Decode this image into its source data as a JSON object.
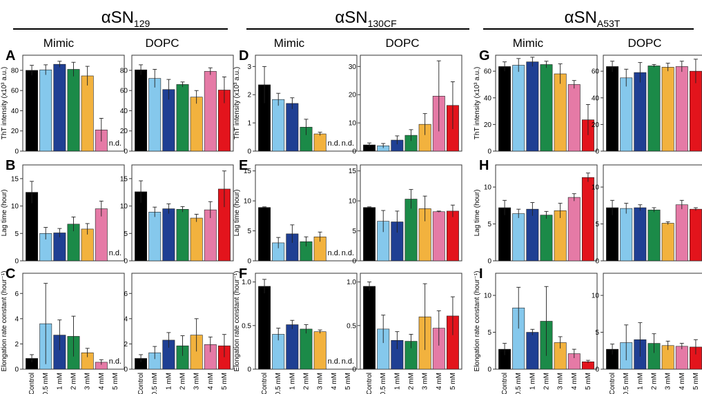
{
  "figure": {
    "groups": [
      {
        "id": "g1",
        "name": "αSN",
        "sub": "129"
      },
      {
        "id": "g2",
        "name": "αSN",
        "sub": "130CF"
      },
      {
        "id": "g3",
        "name": "αSN",
        "sub": "A53T"
      }
    ],
    "conditions": [
      "Mimic",
      "DOPC"
    ],
    "categories": [
      "Control",
      "0.5 mM",
      "1 mM",
      "2 mM",
      "3 mM",
      "4 mM",
      "5 mM"
    ],
    "bar_colors": [
      "#000000",
      "#85c8ec",
      "#1f3f93",
      "#1b8a48",
      "#f2b23e",
      "#e57aa6",
      "#e3141c"
    ],
    "nd_label": "n.d.",
    "row_labels": [
      "ThT intensity (x10³ a.u.)",
      "Lag time (hour)",
      "Elongation rate constant (hour⁻¹)"
    ]
  },
  "chart_data": [
    {
      "type": "bar",
      "panel": "A",
      "group": "αSN129",
      "condition": "Mimic",
      "ylabel": "ThT intensity (x10³ a.u.)",
      "ylim": [
        0,
        95
      ],
      "yticks": [
        0,
        20,
        40,
        60,
        80
      ],
      "values": [
        80,
        80.5,
        86,
        81,
        74.5,
        21,
        null
      ],
      "errors": [
        5,
        5,
        3,
        7,
        9.5,
        11.5,
        null
      ],
      "nd": [
        false,
        false,
        false,
        false,
        false,
        false,
        true
      ]
    },
    {
      "type": "bar",
      "panel": "",
      "group": "αSN129",
      "condition": "DOPC",
      "ylabel": "",
      "ylim": [
        0,
        95
      ],
      "yticks": [
        0,
        20,
        40,
        60,
        80
      ],
      "values": [
        80.5,
        72,
        61,
        66,
        53.5,
        79,
        60.5
      ],
      "errors": [
        5,
        9,
        10,
        2.5,
        6.5,
        3.5,
        13
      ],
      "nd": [
        false,
        false,
        false,
        false,
        false,
        false,
        false
      ]
    },
    {
      "type": "bar",
      "panel": "D",
      "group": "αSN130CF",
      "condition": "Mimic",
      "ylabel": "ThT intensity (x10³ a.u.)",
      "ylim": [
        0,
        3.4
      ],
      "yticks": [
        0,
        1,
        2,
        3
      ],
      "values": [
        2.35,
        1.83,
        1.69,
        0.85,
        0.61,
        null,
        null
      ],
      "errors": [
        0.65,
        0.22,
        0.2,
        0.28,
        0.06,
        null,
        null
      ],
      "nd": [
        false,
        false,
        false,
        false,
        false,
        true,
        true
      ]
    },
    {
      "type": "bar",
      "panel": "",
      "group": "αSN130CF",
      "condition": "DOPC",
      "ylabel": "",
      "ylim": [
        0,
        34
      ],
      "yticks": [
        0,
        10,
        20,
        30
      ],
      "values": [
        2.2,
        1.9,
        3.9,
        5.6,
        9.5,
        19.5,
        16.2
      ],
      "errors": [
        0.7,
        0.8,
        1.5,
        2,
        3.8,
        12.5,
        8.4
      ],
      "nd": [
        false,
        false,
        false,
        false,
        false,
        false,
        false
      ]
    },
    {
      "type": "bar",
      "panel": "G",
      "group": "αSNA53T",
      "condition": "Mimic",
      "ylabel": "ThT intensity (x10³ a.u.)",
      "ylim": [
        0,
        72
      ],
      "yticks": [
        0,
        20,
        40,
        60
      ],
      "values": [
        63.5,
        64.5,
        67,
        65,
        58,
        50,
        23.5
      ],
      "errors": [
        3.5,
        5,
        3.5,
        2.5,
        7.5,
        3,
        11.5
      ],
      "nd": [
        false,
        false,
        false,
        false,
        false,
        false,
        false
      ]
    },
    {
      "type": "bar",
      "panel": "",
      "group": "αSNA53T",
      "condition": "DOPC",
      "ylabel": "",
      "ylim": [
        0,
        72
      ],
      "yticks": [
        0,
        20,
        40,
        60
      ],
      "values": [
        63.5,
        55,
        59,
        64,
        63,
        63.5,
        60
      ],
      "errors": [
        4,
        6.5,
        7.5,
        1,
        3,
        4,
        9
      ],
      "nd": [
        false,
        false,
        false,
        false,
        false,
        false,
        false
      ]
    },
    {
      "type": "bar",
      "panel": "B",
      "group": "αSN129",
      "condition": "Mimic",
      "ylabel": "Lag time (hour)",
      "ylim": [
        0,
        17.5
      ],
      "yticks": [
        0,
        5,
        10,
        15
      ],
      "values": [
        12.5,
        5,
        5.1,
        6.7,
        5.8,
        9.5,
        null
      ],
      "errors": [
        2,
        1.1,
        0.8,
        1.3,
        1,
        1.4,
        null
      ],
      "nd": [
        false,
        false,
        false,
        false,
        false,
        false,
        true
      ]
    },
    {
      "type": "bar",
      "panel": "",
      "group": "αSN129",
      "condition": "DOPC",
      "ylabel": "",
      "ylim": [
        0,
        17.5
      ],
      "yticks": [
        0,
        5,
        10,
        15
      ],
      "values": [
        12.6,
        8.9,
        9.5,
        9.4,
        7.8,
        9.3,
        13.1
      ],
      "errors": [
        2,
        0.9,
        0.9,
        0.5,
        0.7,
        1.5,
        3.3
      ],
      "nd": [
        false,
        false,
        false,
        false,
        false,
        false,
        false
      ]
    },
    {
      "type": "bar",
      "panel": "E",
      "group": "αSN130CF",
      "condition": "Mimic",
      "ylabel": "Lag time (hour)",
      "ylim": [
        0,
        16
      ],
      "yticks": [
        0,
        5,
        10,
        15
      ],
      "values": [
        8.9,
        3,
        4.5,
        3.2,
        4,
        null,
        null
      ],
      "errors": [
        0.1,
        0.9,
        1.5,
        0.8,
        0.8,
        null,
        null
      ],
      "nd": [
        false,
        false,
        false,
        false,
        false,
        true,
        true
      ]
    },
    {
      "type": "bar",
      "panel": "",
      "group": "αSN130CF",
      "condition": "DOPC",
      "ylabel": "",
      "ylim": [
        0,
        16
      ],
      "yticks": [
        0,
        5,
        10,
        15
      ],
      "values": [
        8.9,
        6.6,
        6.5,
        10.3,
        8.7,
        8.2,
        8.3
      ],
      "errors": [
        0.1,
        1.8,
        1.8,
        1.6,
        2.1,
        0.1,
        1
      ],
      "nd": [
        false,
        false,
        false,
        false,
        false,
        false,
        false
      ]
    },
    {
      "type": "bar",
      "panel": "H",
      "group": "αSNA53T",
      "condition": "Mimic",
      "ylabel": "Lag time (hour)",
      "ylim": [
        0,
        13
      ],
      "yticks": [
        0,
        5,
        10
      ],
      "values": [
        7.2,
        6.4,
        7,
        6.2,
        6.8,
        8.6,
        11.3
      ],
      "errors": [
        1,
        0.6,
        0.9,
        0.5,
        1,
        0.5,
        0.6
      ],
      "nd": [
        false,
        false,
        false,
        false,
        false,
        false,
        false
      ]
    },
    {
      "type": "bar",
      "panel": "",
      "group": "αSNA53T",
      "condition": "DOPC",
      "ylabel": "",
      "ylim": [
        0,
        13
      ],
      "yticks": [
        0,
        5,
        10
      ],
      "values": [
        7.2,
        7.1,
        7.2,
        6.9,
        5.1,
        7.6,
        7
      ],
      "errors": [
        1,
        0.7,
        0.4,
        0.3,
        0.2,
        0.6,
        0.2
      ],
      "nd": [
        false,
        false,
        false,
        false,
        false,
        false,
        false
      ]
    },
    {
      "type": "bar",
      "panel": "C",
      "group": "αSN129",
      "condition": "Mimic",
      "ylabel": "Elongation rate constant (hour⁻¹)",
      "ylim": [
        0,
        7.6
      ],
      "yticks": [
        0,
        2,
        4,
        6
      ],
      "values": [
        0.85,
        3.6,
        2.7,
        2.6,
        1.3,
        0.55,
        null
      ],
      "errors": [
        0.3,
        3.2,
        1.2,
        1.6,
        0.35,
        0.2,
        null
      ],
      "nd": [
        false,
        false,
        false,
        false,
        false,
        false,
        true
      ]
    },
    {
      "type": "bar",
      "panel": "",
      "group": "αSN129",
      "condition": "DOPC",
      "ylabel": "",
      "ylim": [
        0,
        7.6
      ],
      "yticks": [
        0,
        2,
        4,
        6
      ],
      "values": [
        0.85,
        1.3,
        2.3,
        1.85,
        2.7,
        1.95,
        1.85
      ],
      "errors": [
        0.3,
        0.5,
        0.6,
        0.8,
        1.3,
        0.6,
        0.9
      ],
      "nd": [
        false,
        false,
        false,
        false,
        false,
        false,
        false
      ]
    },
    {
      "type": "bar",
      "panel": "F",
      "group": "αSN130CF",
      "condition": "Mimic",
      "ylabel": "Elongation rate constant (hour⁻¹)",
      "ylim": [
        0,
        1.1
      ],
      "yticks": [
        0,
        0.5,
        1.0
      ],
      "values": [
        0.95,
        0.4,
        0.51,
        0.46,
        0.43,
        null,
        null
      ],
      "errors": [
        0.08,
        0.07,
        0.05,
        0.05,
        0.02,
        null,
        null
      ],
      "nd": [
        false,
        false,
        false,
        false,
        false,
        true,
        true
      ]
    },
    {
      "type": "bar",
      "panel": "",
      "group": "αSN130CF",
      "condition": "DOPC",
      "ylabel": "",
      "ylim": [
        0,
        1.1
      ],
      "yticks": [
        0,
        0.5,
        1.0
      ],
      "values": [
        0.95,
        0.46,
        0.33,
        0.32,
        0.6,
        0.47,
        0.61
      ],
      "errors": [
        0.05,
        0.16,
        0.1,
        0.08,
        0.38,
        0.2,
        0.22
      ],
      "nd": [
        false,
        false,
        false,
        false,
        false,
        false,
        false
      ]
    },
    {
      "type": "bar",
      "panel": "I",
      "group": "αSNA53T",
      "condition": "Mimic",
      "ylabel": "Elongation rate constant (hour⁻¹)",
      "ylim": [
        0,
        13
      ],
      "yticks": [
        0,
        5,
        10
      ],
      "values": [
        2.7,
        8.3,
        5,
        6.5,
        3.6,
        2.1,
        1
      ],
      "errors": [
        0.8,
        2.8,
        0.4,
        4.7,
        0.8,
        0.6,
        0.2
      ],
      "nd": [
        false,
        false,
        false,
        false,
        false,
        false,
        false
      ]
    },
    {
      "type": "bar",
      "panel": "",
      "group": "αSNA53T",
      "condition": "DOPC",
      "ylabel": "",
      "ylim": [
        0,
        13
      ],
      "yticks": [
        0,
        5,
        10
      ],
      "values": [
        2.7,
        3.6,
        4,
        3.5,
        3.2,
        3.1,
        3
      ],
      "errors": [
        0.7,
        2.4,
        2.3,
        1.3,
        0.6,
        0.4,
        1
      ],
      "nd": [
        false,
        false,
        false,
        false,
        false,
        false,
        false
      ]
    }
  ]
}
